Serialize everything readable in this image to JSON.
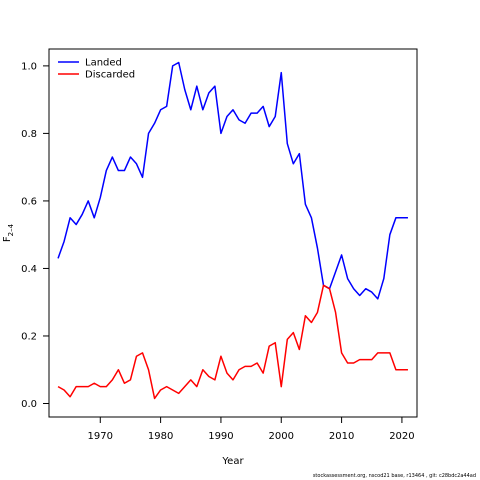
{
  "chart_data": {
    "type": "line",
    "xlabel": "Year",
    "ylabel": "F2–4",
    "ylabel_main": "F",
    "ylabel_sub": "2–4",
    "xlim": [
      1961.5,
      2022.5
    ],
    "ylim": [
      -0.04,
      1.05
    ],
    "xticks": [
      1970,
      1980,
      1990,
      2000,
      2010,
      2020
    ],
    "yticks": [
      0.0,
      0.2,
      0.4,
      0.6,
      0.8,
      1.0
    ],
    "ytick_labels": [
      "0.0",
      "0.2",
      "0.4",
      "0.6",
      "0.8",
      "1.0"
    ],
    "grid": false,
    "legend_position": "top-left",
    "x": [
      1963,
      1964,
      1965,
      1966,
      1967,
      1968,
      1969,
      1970,
      1971,
      1972,
      1973,
      1974,
      1975,
      1976,
      1977,
      1978,
      1979,
      1980,
      1981,
      1982,
      1983,
      1984,
      1985,
      1986,
      1987,
      1988,
      1989,
      1990,
      1991,
      1992,
      1993,
      1994,
      1995,
      1996,
      1997,
      1998,
      1999,
      2000,
      2001,
      2002,
      2003,
      2004,
      2005,
      2006,
      2007,
      2008,
      2009,
      2010,
      2011,
      2012,
      2013,
      2014,
      2015,
      2016,
      2017,
      2018,
      2019,
      2020,
      2021
    ],
    "series": [
      {
        "name": "Landed",
        "color": "#0000ff",
        "values": [
          0.43,
          0.48,
          0.55,
          0.53,
          0.56,
          0.6,
          0.55,
          0.61,
          0.69,
          0.73,
          0.69,
          0.69,
          0.73,
          0.71,
          0.67,
          0.8,
          0.83,
          0.87,
          0.88,
          1.0,
          1.01,
          0.93,
          0.87,
          0.94,
          0.87,
          0.92,
          0.94,
          0.8,
          0.85,
          0.87,
          0.84,
          0.83,
          0.86,
          0.86,
          0.88,
          0.82,
          0.85,
          0.98,
          0.77,
          0.71,
          0.74,
          0.59,
          0.55,
          0.46,
          0.35,
          0.34,
          0.39,
          0.44,
          0.37,
          0.34,
          0.32,
          0.34,
          0.33,
          0.31,
          0.37,
          0.5,
          0.55,
          0.55,
          0.55
        ]
      },
      {
        "name": "Discarded",
        "color": "#ff0000",
        "values": [
          0.05,
          0.04,
          0.02,
          0.05,
          0.05,
          0.05,
          0.06,
          0.05,
          0.05,
          0.07,
          0.1,
          0.06,
          0.07,
          0.14,
          0.15,
          0.1,
          0.015,
          0.04,
          0.05,
          0.04,
          0.03,
          0.05,
          0.07,
          0.05,
          0.1,
          0.08,
          0.07,
          0.14,
          0.09,
          0.07,
          0.1,
          0.11,
          0.11,
          0.12,
          0.09,
          0.17,
          0.18,
          0.05,
          0.19,
          0.21,
          0.16,
          0.26,
          0.24,
          0.27,
          0.35,
          0.34,
          0.27,
          0.15,
          0.12,
          0.12,
          0.13,
          0.13,
          0.13,
          0.15,
          0.15,
          0.15,
          0.1,
          0.1,
          0.1
        ]
      }
    ]
  },
  "footer": "stockassessment.org, nscod21 base, r13464 , git: c28bdc2a44ad"
}
